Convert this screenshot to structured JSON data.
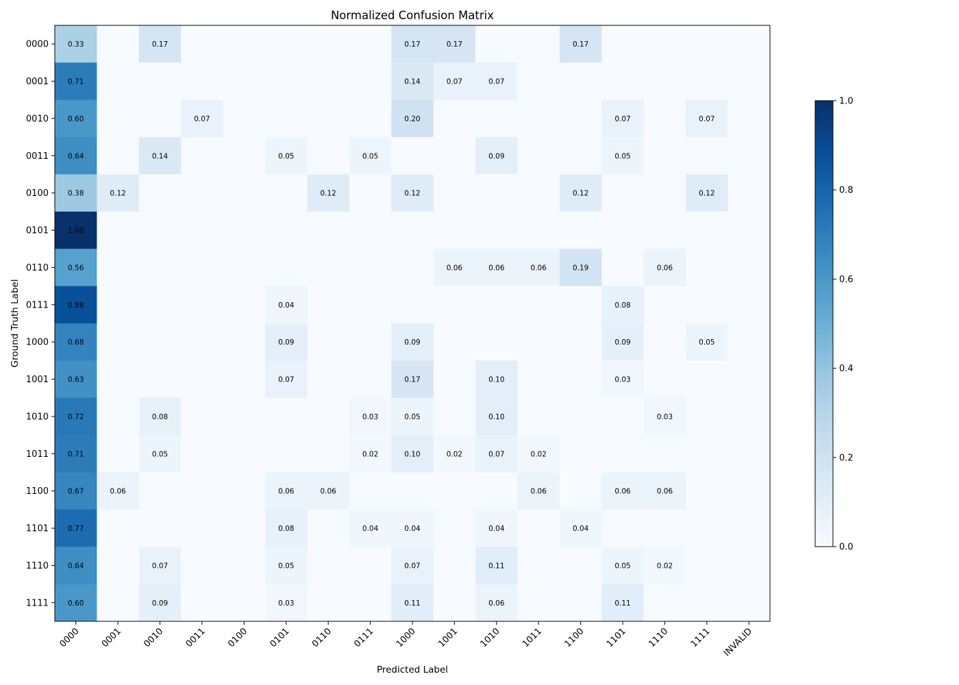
{
  "chart_data": {
    "type": "heatmap",
    "title": "Normalized Confusion Matrix",
    "xlabel": "Predicted Label",
    "ylabel": "Ground Truth Label",
    "x_categories": [
      "0000",
      "0001",
      "0010",
      "0011",
      "0100",
      "0101",
      "0110",
      "0111",
      "1000",
      "1001",
      "1010",
      "1011",
      "1100",
      "1101",
      "1110",
      "1111",
      "INVALID"
    ],
    "y_categories": [
      "0000",
      "0001",
      "0010",
      "0011",
      "0100",
      "0101",
      "0110",
      "0111",
      "1000",
      "1001",
      "1010",
      "1011",
      "1100",
      "1101",
      "1110",
      "1111"
    ],
    "colormap": "Blues",
    "color_range": [
      0.0,
      1.0
    ],
    "colorbar_ticks": [
      "0.0",
      "0.2",
      "0.4",
      "0.6",
      "0.8",
      "1.0"
    ],
    "values": [
      [
        0.33,
        0,
        0.17,
        0,
        0,
        0,
        0,
        0,
        0.17,
        0.17,
        0,
        0,
        0.17,
        0,
        0,
        0,
        0
      ],
      [
        0.71,
        0,
        0,
        0,
        0,
        0,
        0,
        0,
        0.14,
        0.07,
        0.07,
        0,
        0,
        0,
        0,
        0,
        0
      ],
      [
        0.6,
        0,
        0,
        0.07,
        0,
        0,
        0,
        0,
        0.2,
        0,
        0,
        0,
        0,
        0.07,
        0,
        0.07,
        0
      ],
      [
        0.64,
        0,
        0.14,
        0,
        0,
        0.05,
        0,
        0.05,
        0,
        0,
        0.09,
        0,
        0,
        0.05,
        0,
        0,
        0
      ],
      [
        0.38,
        0.12,
        0,
        0,
        0,
        0,
        0.12,
        0,
        0.12,
        0,
        0,
        0,
        0.12,
        0,
        0,
        0.12,
        0
      ],
      [
        1.0,
        0,
        0,
        0,
        0,
        0,
        0,
        0,
        0,
        0,
        0,
        0,
        0,
        0,
        0,
        0,
        0
      ],
      [
        0.56,
        0,
        0,
        0,
        0,
        0,
        0,
        0,
        0,
        0.06,
        0.06,
        0.06,
        0.19,
        0,
        0.06,
        0,
        0
      ],
      [
        0.88,
        0,
        0,
        0,
        0,
        0.04,
        0,
        0,
        0,
        0,
        0,
        0,
        0,
        0.08,
        0,
        0,
        0
      ],
      [
        0.68,
        0,
        0,
        0,
        0,
        0.09,
        0,
        0,
        0.09,
        0,
        0,
        0,
        0,
        0.09,
        0,
        0.05,
        0
      ],
      [
        0.63,
        0,
        0,
        0,
        0,
        0.07,
        0,
        0,
        0.17,
        0,
        0.1,
        0,
        0,
        0.03,
        0,
        0,
        0
      ],
      [
        0.72,
        0,
        0.08,
        0,
        0,
        0,
        0,
        0.03,
        0.05,
        0,
        0.1,
        0,
        0,
        0,
        0.03,
        0,
        0
      ],
      [
        0.71,
        0,
        0.05,
        0,
        0,
        0,
        0,
        0.02,
        0.1,
        0.02,
        0.07,
        0.02,
        0,
        0,
        0,
        0,
        0
      ],
      [
        0.67,
        0.06,
        0,
        0,
        0,
        0.06,
        0.06,
        0,
        0,
        0,
        0,
        0.06,
        0,
        0.06,
        0.06,
        0,
        0
      ],
      [
        0.77,
        0,
        0,
        0,
        0,
        0.08,
        0,
        0.04,
        0.04,
        0,
        0.04,
        0,
        0.04,
        0,
        0,
        0,
        0
      ],
      [
        0.64,
        0,
        0.07,
        0,
        0,
        0.05,
        0,
        0,
        0.07,
        0,
        0.11,
        0,
        0,
        0.05,
        0.02,
        0,
        0
      ],
      [
        0.6,
        0,
        0.09,
        0,
        0,
        0.03,
        0,
        0,
        0.11,
        0,
        0.06,
        0,
        0,
        0.11,
        0,
        0,
        0
      ]
    ]
  }
}
